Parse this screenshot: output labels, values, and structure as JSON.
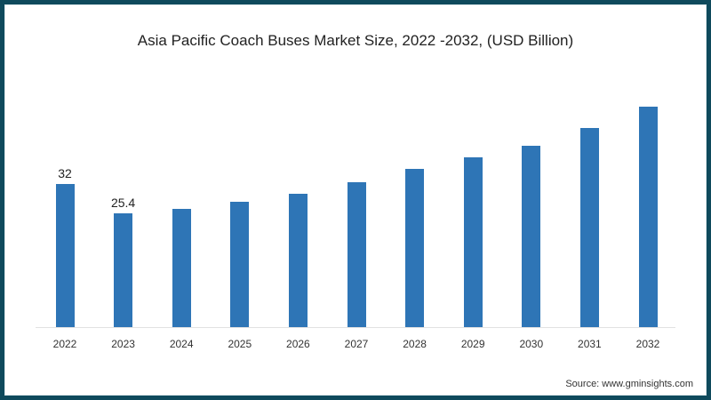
{
  "chart_data": {
    "type": "bar",
    "title": "Asia Pacific Coach Buses Market Size, 2022 -2032, (USD Billion)",
    "xlabel": "",
    "ylabel": "",
    "categories": [
      "2022",
      "2023",
      "2024",
      "2025",
      "2026",
      "2027",
      "2028",
      "2029",
      "2030",
      "2031",
      "2032"
    ],
    "values": [
      32,
      25.4,
      26.4,
      28.0,
      29.8,
      32.4,
      35.4,
      38.0,
      40.6,
      44.5,
      49.3
    ],
    "data_labels": {
      "2022": "32",
      "2023": "25.4"
    },
    "ylim": [
      0,
      61
    ],
    "grid": false,
    "legend": null,
    "bar_color": "#2e75b6"
  },
  "source": "Source: www.gminsights.com",
  "colors": {
    "frame": "#0f4a5c",
    "bar": "#2e75b6"
  }
}
